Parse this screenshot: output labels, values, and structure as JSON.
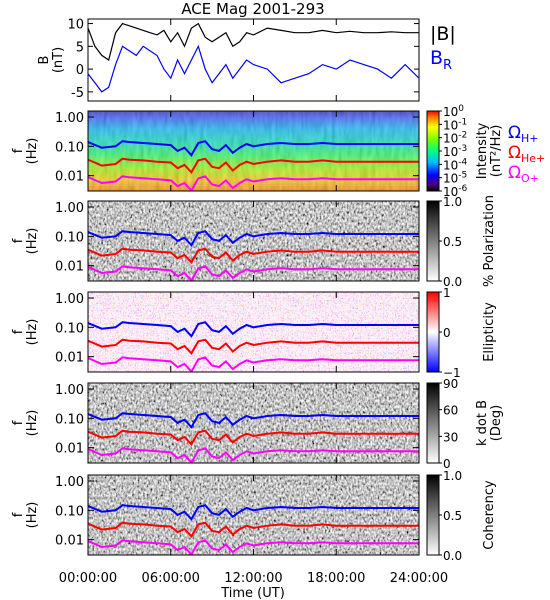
{
  "chart_data": {
    "type": "multi-panel",
    "title": "ACE Mag 2001-293",
    "x_axis": {
      "label": "Time (UT)",
      "ticks": [
        "00:00:00",
        "06:00:00",
        "12:00:00",
        "18:00:00",
        "24:00:00"
      ],
      "range_hours": [
        0,
        24
      ]
    },
    "colors": {
      "B_total": "#000000",
      "B_R": "#0000ff",
      "H_plus": "#0000ff",
      "He_plus": "#ff0000",
      "O_plus": "#ff00ff"
    },
    "panels": [
      {
        "id": "b-field",
        "type": "line",
        "ylabel": [
          "B",
          "(nT)"
        ],
        "ylim": [
          -7,
          11
        ],
        "yticks": [
          "10",
          "5",
          "0",
          "-5"
        ],
        "series": [
          {
            "name": "|B|",
            "color": "#000000",
            "x": [
              0,
              0.5,
              1,
              1.5,
              2,
              2.5,
              3,
              3.5,
              4,
              4.5,
              5,
              5.5,
              6,
              6.5,
              7,
              7.5,
              8,
              8.5,
              9,
              9.5,
              10,
              10.5,
              11,
              11.5,
              12,
              13,
              14,
              15,
              16,
              17,
              18,
              19,
              20,
              21,
              22,
              23,
              24
            ],
            "y": [
              9,
              5,
              3,
              2,
              8,
              10,
              9.5,
              9,
              8.5,
              8,
              7.5,
              8.5,
              6,
              8,
              5,
              9,
              10,
              7,
              6,
              7,
              8,
              5,
              6,
              8,
              7.5,
              9,
              8.5,
              8,
              8,
              8.5,
              8,
              8.3,
              8,
              8,
              8.2,
              8,
              8
            ]
          },
          {
            "name": "B_R",
            "color": "#0000ff",
            "x": [
              0,
              0.5,
              1,
              1.5,
              2,
              2.5,
              3,
              3.5,
              4,
              4.5,
              5,
              5.5,
              6,
              6.5,
              7,
              7.5,
              8,
              8.5,
              9,
              9.5,
              10,
              10.5,
              11,
              11.5,
              12,
              13,
              14,
              15,
              16,
              17,
              18,
              19,
              20,
              21,
              22,
              23,
              24
            ],
            "y": [
              -1,
              -3,
              -5,
              -4,
              1,
              5,
              4,
              3,
              5,
              4,
              3,
              0,
              -2,
              2,
              -1,
              2,
              5,
              0,
              -3,
              -1,
              1,
              -2,
              0,
              2,
              1,
              0,
              -3,
              -2,
              -1,
              1,
              0,
              2,
              1,
              0,
              -2,
              1,
              -2
            ]
          }
        ],
        "legend": [
          {
            "label": "|B|",
            "color": "#000000"
          },
          {
            "label": "B",
            "sub": "R",
            "color": "#0000ff"
          }
        ]
      },
      {
        "id": "intensity",
        "type": "heatmap",
        "ylabel": [
          "f",
          "(Hz)"
        ],
        "yticks": [
          "1.00",
          "0.10",
          "0.01"
        ],
        "colorbar": {
          "label": [
            "Intensity",
            "(nT²/Hz)"
          ],
          "ticks": [
            {
              "base": "10",
              "exp": "0"
            },
            {
              "base": "10",
              "exp": "-1"
            },
            {
              "base": "10",
              "exp": "-2"
            },
            {
              "base": "10",
              "exp": "-3"
            },
            {
              "base": "10",
              "exp": "-4"
            },
            {
              "base": "10",
              "exp": "-5"
            },
            {
              "base": "10",
              "exp": "-6"
            }
          ],
          "map": "rainbow"
        },
        "legend": [
          {
            "label": "Ω",
            "sub": "H+",
            "color": "#0000ff"
          },
          {
            "label": "Ω",
            "sub": "He+",
            "color": "#ff0000"
          },
          {
            "label": "Ω",
            "sub": "O+",
            "color": "#ff00ff"
          }
        ]
      },
      {
        "id": "polarization",
        "type": "heatmap",
        "ylabel": [
          "f",
          "(Hz)"
        ],
        "yticks": [
          "1.00",
          "0.10",
          "0.01"
        ],
        "colorbar": {
          "label": [
            "% Polarization"
          ],
          "ticks": [
            "1.0",
            "0.5",
            "0.0"
          ],
          "map": "gray"
        }
      },
      {
        "id": "ellipticity",
        "type": "heatmap",
        "ylabel": [
          "f",
          "(Hz)"
        ],
        "yticks": [
          "1.00",
          "0.10",
          "0.01"
        ],
        "colorbar": {
          "label": [
            "Ellipticity"
          ],
          "ticks": [
            "1",
            "0",
            "−1"
          ],
          "map": "redblue"
        }
      },
      {
        "id": "k-dot-b",
        "type": "heatmap",
        "ylabel": [
          "f",
          "(Hz)"
        ],
        "yticks": [
          "1.00",
          "0.10",
          "0.01"
        ],
        "colorbar": {
          "label": [
            "k dot B",
            "(Deg)"
          ],
          "ticks": [
            "90",
            "60",
            "30",
            "0"
          ],
          "map": "gray"
        }
      },
      {
        "id": "coherency",
        "type": "heatmap",
        "ylabel": [
          "f",
          "(Hz)"
        ],
        "yticks": [
          "1.00",
          "0.10",
          "0.01"
        ],
        "colorbar": {
          "label": [
            "Coherency"
          ],
          "ticks": [
            "1.0",
            "0.5",
            "0.0"
          ],
          "map": "gray"
        }
      }
    ],
    "gyrofrequency_lines": {
      "x": [
        0,
        1,
        2,
        2.5,
        3,
        4,
        5,
        6,
        6.5,
        7,
        7.5,
        8,
        8.5,
        9,
        9.5,
        10,
        10.5,
        11,
        11.5,
        12,
        13,
        14,
        15,
        16,
        17,
        18,
        19,
        20,
        21,
        22,
        23,
        24
      ],
      "H_plus": [
        0.14,
        0.09,
        0.1,
        0.15,
        0.14,
        0.13,
        0.12,
        0.11,
        0.07,
        0.09,
        0.05,
        0.13,
        0.15,
        0.08,
        0.07,
        0.11,
        0.06,
        0.09,
        0.12,
        0.1,
        0.12,
        0.13,
        0.12,
        0.12,
        0.13,
        0.12,
        0.12,
        0.12,
        0.12,
        0.12,
        0.12,
        0.12
      ],
      "He_plus": [
        0.035,
        0.022,
        0.025,
        0.038,
        0.035,
        0.033,
        0.03,
        0.028,
        0.018,
        0.023,
        0.013,
        0.033,
        0.038,
        0.02,
        0.018,
        0.028,
        0.015,
        0.023,
        0.03,
        0.025,
        0.03,
        0.033,
        0.03,
        0.03,
        0.033,
        0.03,
        0.03,
        0.03,
        0.03,
        0.03,
        0.03,
        0.03
      ],
      "O_plus": [
        0.009,
        0.0056,
        0.0063,
        0.0095,
        0.0088,
        0.0081,
        0.0075,
        0.0069,
        0.0044,
        0.0056,
        0.0031,
        0.0081,
        0.0094,
        0.005,
        0.0044,
        0.0069,
        0.0038,
        0.0056,
        0.0075,
        0.0063,
        0.0075,
        0.0081,
        0.0075,
        0.0075,
        0.0081,
        0.0075,
        0.0075,
        0.0075,
        0.0075,
        0.0075,
        0.0075,
        0.0075
      ]
    },
    "freq_range_hz": [
      0.003,
      1.6
    ]
  }
}
